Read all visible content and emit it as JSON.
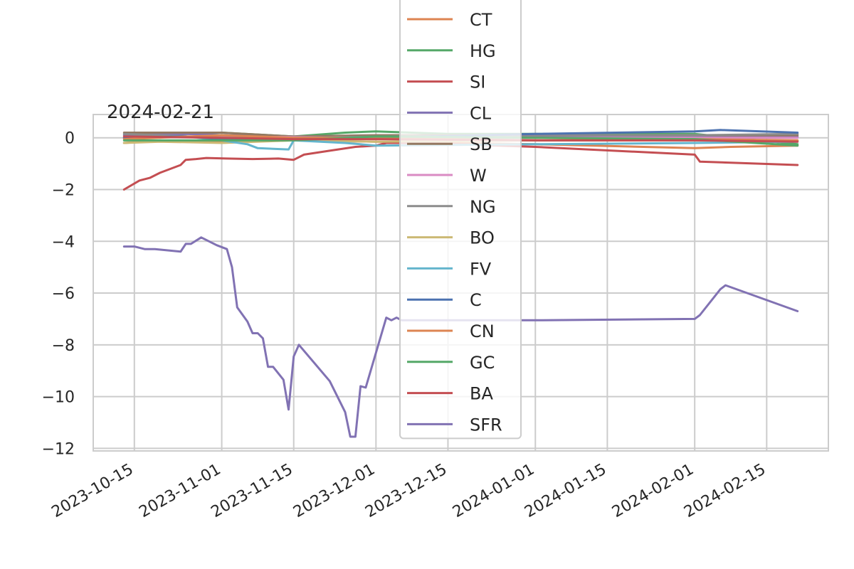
{
  "chart_data": {
    "type": "line",
    "title": "2024-02-21",
    "xlabel": "",
    "ylabel": "",
    "x_axis": "date",
    "xlim": [
      "2023-10-07",
      "2024-02-27"
    ],
    "ylim": [
      -12.1,
      0.9
    ],
    "x_ticks": [
      "2023-10-15",
      "2023-11-01",
      "2023-11-15",
      "2023-12-01",
      "2023-12-15",
      "2024-01-01",
      "2024-01-15",
      "2024-02-01",
      "2024-02-15"
    ],
    "y_ticks": [
      0,
      -2,
      -4,
      -6,
      -8,
      -10,
      -12
    ],
    "y_tick_labels": [
      "0",
      "−2",
      "−4",
      "−6",
      "−8",
      "−10",
      "−12"
    ],
    "grid": true,
    "legend_position": "top-center",
    "series": [
      {
        "name": "CT",
        "color": "#dd8452",
        "points": [
          [
            "2023-10-13",
            -0.2
          ],
          [
            "2023-10-20",
            -0.1
          ],
          [
            "2023-11-01",
            -0.15
          ],
          [
            "2023-11-15",
            -0.1
          ],
          [
            "2023-12-01",
            -0.15
          ],
          [
            "2023-12-15",
            -0.2
          ],
          [
            "2024-01-01",
            -0.25
          ],
          [
            "2024-02-01",
            -0.4
          ],
          [
            "2024-02-08",
            -0.35
          ],
          [
            "2024-02-21",
            -0.3
          ]
        ]
      },
      {
        "name": "HG",
        "color": "#55a868",
        "points": [
          [
            "2023-10-13",
            0.0
          ],
          [
            "2023-10-25",
            0.15
          ],
          [
            "2023-11-01",
            0.2
          ],
          [
            "2023-11-15",
            0.05
          ],
          [
            "2023-11-25",
            0.2
          ],
          [
            "2023-12-01",
            0.25
          ],
          [
            "2023-12-15",
            0.15
          ],
          [
            "2024-01-01",
            0.15
          ],
          [
            "2024-02-01",
            0.15
          ],
          [
            "2024-02-21",
            -0.25
          ]
        ]
      },
      {
        "name": "SI",
        "color": "#c44e52",
        "points": [
          [
            "2023-10-13",
            -2.0
          ],
          [
            "2023-10-16",
            -1.65
          ],
          [
            "2023-10-18",
            -1.55
          ],
          [
            "2023-10-20",
            -1.35
          ],
          [
            "2023-10-24",
            -1.05
          ],
          [
            "2023-10-25",
            -0.85
          ],
          [
            "2023-10-27",
            -0.82
          ],
          [
            "2023-10-29",
            -0.78
          ],
          [
            "2023-11-02",
            -0.8
          ],
          [
            "2023-11-07",
            -0.82
          ],
          [
            "2023-11-12",
            -0.8
          ],
          [
            "2023-11-15",
            -0.85
          ],
          [
            "2023-11-17",
            -0.65
          ],
          [
            "2023-11-22",
            -0.5
          ],
          [
            "2023-11-27",
            -0.35
          ],
          [
            "2023-12-01",
            -0.3
          ],
          [
            "2023-12-03",
            -0.2
          ],
          [
            "2023-12-10",
            -0.2
          ],
          [
            "2024-01-01",
            -0.35
          ],
          [
            "2024-02-01",
            -0.65
          ],
          [
            "2024-02-02",
            -0.92
          ],
          [
            "2024-02-21",
            -1.05
          ]
        ]
      },
      {
        "name": "CL",
        "color": "#8172b3",
        "points": [
          [
            "2023-10-13",
            0.1
          ],
          [
            "2023-10-25",
            0.15
          ],
          [
            "2023-11-01",
            0.1
          ],
          [
            "2023-11-15",
            0.05
          ],
          [
            "2023-12-01",
            0.05
          ],
          [
            "2023-12-15",
            0.05
          ],
          [
            "2024-01-01",
            0.05
          ],
          [
            "2024-02-01",
            0.05
          ],
          [
            "2024-02-21",
            0.05
          ]
        ]
      },
      {
        "name": "SB",
        "color": "#937860",
        "points": [
          [
            "2023-10-13",
            0.2
          ],
          [
            "2023-10-20",
            0.2
          ],
          [
            "2023-11-01",
            0.2
          ],
          [
            "2023-11-15",
            0.05
          ],
          [
            "2023-12-01",
            0.1
          ],
          [
            "2023-12-15",
            0.1
          ],
          [
            "2024-01-01",
            0.1
          ],
          [
            "2024-02-01",
            0.1
          ],
          [
            "2024-02-21",
            0.1
          ]
        ]
      },
      {
        "name": "W",
        "color": "#da8bc3",
        "points": [
          [
            "2023-10-13",
            0.0
          ],
          [
            "2023-11-01",
            0.05
          ],
          [
            "2023-12-01",
            0.0
          ],
          [
            "2024-01-01",
            0.0
          ],
          [
            "2024-02-01",
            0.0
          ],
          [
            "2024-02-21",
            0.0
          ]
        ]
      },
      {
        "name": "NG",
        "color": "#8c8c8c",
        "points": [
          [
            "2023-10-13",
            0.15
          ],
          [
            "2023-11-01",
            0.0
          ],
          [
            "2023-11-15",
            0.0
          ],
          [
            "2023-12-01",
            0.05
          ],
          [
            "2024-01-01",
            0.1
          ],
          [
            "2024-02-01",
            0.1
          ],
          [
            "2024-02-21",
            0.15
          ]
        ]
      },
      {
        "name": "BO",
        "color": "#ccb974",
        "points": [
          [
            "2023-10-13",
            -0.2
          ],
          [
            "2023-10-20",
            -0.15
          ],
          [
            "2023-11-01",
            -0.2
          ],
          [
            "2023-11-15",
            -0.1
          ],
          [
            "2023-12-01",
            -0.15
          ],
          [
            "2024-01-01",
            -0.1
          ],
          [
            "2024-02-01",
            -0.1
          ],
          [
            "2024-02-21",
            -0.1
          ]
        ]
      },
      {
        "name": "FV",
        "color": "#64b5cd",
        "points": [
          [
            "2023-10-13",
            0.0
          ],
          [
            "2023-10-25",
            0.05
          ],
          [
            "2023-11-01",
            -0.1
          ],
          [
            "2023-11-06",
            -0.25
          ],
          [
            "2023-11-08",
            -0.4
          ],
          [
            "2023-11-14",
            -0.45
          ],
          [
            "2023-11-15",
            -0.1
          ],
          [
            "2023-11-25",
            -0.2
          ],
          [
            "2023-12-01",
            -0.3
          ],
          [
            "2024-01-01",
            -0.25
          ],
          [
            "2024-02-01",
            -0.2
          ],
          [
            "2024-02-21",
            -0.15
          ]
        ]
      },
      {
        "name": "C",
        "color": "#4c72b0",
        "points": [
          [
            "2023-10-13",
            0.0
          ],
          [
            "2023-10-25",
            0.05
          ],
          [
            "2023-11-01",
            -0.05
          ],
          [
            "2023-11-15",
            -0.05
          ],
          [
            "2023-12-01",
            0.0
          ],
          [
            "2024-01-01",
            0.15
          ],
          [
            "2024-02-01",
            0.25
          ],
          [
            "2024-02-06",
            0.3
          ],
          [
            "2024-02-21",
            0.2
          ]
        ]
      },
      {
        "name": "CN",
        "color": "#dd8452",
        "points": [
          [
            "2023-10-13",
            -0.05
          ],
          [
            "2023-11-01",
            0.1
          ],
          [
            "2023-11-15",
            0.0
          ],
          [
            "2023-12-01",
            0.0
          ],
          [
            "2024-01-01",
            -0.1
          ],
          [
            "2024-02-01",
            -0.05
          ],
          [
            "2024-02-21",
            -0.1
          ]
        ]
      },
      {
        "name": "GC",
        "color": "#55a868",
        "points": [
          [
            "2023-10-13",
            -0.1
          ],
          [
            "2023-11-01",
            -0.1
          ],
          [
            "2023-11-15",
            -0.1
          ],
          [
            "2023-12-01",
            0.05
          ],
          [
            "2024-01-01",
            0.0
          ],
          [
            "2024-02-01",
            -0.05
          ],
          [
            "2024-02-21",
            -0.3
          ]
        ]
      },
      {
        "name": "BA",
        "color": "#c44e52",
        "points": [
          [
            "2023-10-13",
            0.05
          ],
          [
            "2023-11-01",
            0.0
          ],
          [
            "2023-11-15",
            -0.05
          ],
          [
            "2023-12-01",
            -0.05
          ],
          [
            "2024-01-01",
            -0.1
          ],
          [
            "2024-02-01",
            -0.1
          ],
          [
            "2024-02-21",
            -0.15
          ]
        ]
      },
      {
        "name": "SFR",
        "color": "#8172b3",
        "points": [
          [
            "2023-10-13",
            -4.2
          ],
          [
            "2023-10-15",
            -4.2
          ],
          [
            "2023-10-17",
            -4.3
          ],
          [
            "2023-10-19",
            -4.3
          ],
          [
            "2023-10-24",
            -4.4
          ],
          [
            "2023-10-25",
            -4.1
          ],
          [
            "2023-10-26",
            -4.1
          ],
          [
            "2023-10-28",
            -3.85
          ],
          [
            "2023-10-31",
            -4.15
          ],
          [
            "2023-11-02",
            -4.3
          ],
          [
            "2023-11-03",
            -5.0
          ],
          [
            "2023-11-04",
            -6.55
          ],
          [
            "2023-11-06",
            -7.1
          ],
          [
            "2023-11-07",
            -7.55
          ],
          [
            "2023-11-08",
            -7.55
          ],
          [
            "2023-11-09",
            -7.75
          ],
          [
            "2023-11-10",
            -8.85
          ],
          [
            "2023-11-11",
            -8.85
          ],
          [
            "2023-11-13",
            -9.35
          ],
          [
            "2023-11-14",
            -10.5
          ],
          [
            "2023-11-15",
            -8.45
          ],
          [
            "2023-11-16",
            -8.0
          ],
          [
            "2023-11-22",
            -9.4
          ],
          [
            "2023-11-25",
            -10.6
          ],
          [
            "2023-11-26",
            -11.55
          ],
          [
            "2023-11-27",
            -11.55
          ],
          [
            "2023-11-28",
            -9.6
          ],
          [
            "2023-11-29",
            -9.65
          ],
          [
            "2023-12-03",
            -6.95
          ],
          [
            "2023-12-04",
            -7.05
          ],
          [
            "2023-12-05",
            -6.95
          ],
          [
            "2023-12-06",
            -7.05
          ],
          [
            "2024-01-01",
            -7.05
          ],
          [
            "2024-02-01",
            -7.0
          ],
          [
            "2024-02-02",
            -6.85
          ],
          [
            "2024-02-06",
            -5.85
          ],
          [
            "2024-02-07",
            -5.7
          ],
          [
            "2024-02-21",
            -6.7
          ]
        ]
      }
    ]
  }
}
